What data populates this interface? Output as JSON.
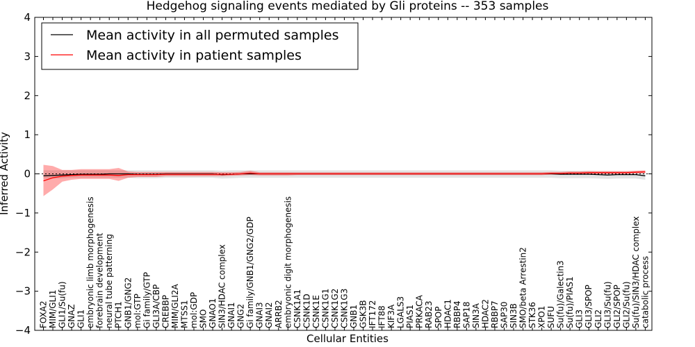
{
  "chart_data": {
    "type": "line",
    "title": "Hedgehog signaling events mediated by Gli proteins -- 353 samples",
    "xlabel": "Cellular Entities",
    "ylabel": "Inferred Activity",
    "ylim": [
      -4,
      4
    ],
    "yticks": [
      -4,
      -3,
      -2,
      -1,
      0,
      1,
      2,
      3,
      4
    ],
    "ytick_labels": [
      "−4",
      "−3",
      "−2",
      "−1",
      "0",
      "1",
      "2",
      "3",
      "4"
    ],
    "legend_position": "upper-left",
    "categories": [
      "FOXA2",
      "MIM/GLI1",
      "GLI1/Su(fu)",
      "GNAZ",
      "GLI1",
      "embryonic limb morphogenesis",
      "forebrain development",
      "neural tube patterning",
      "PTCH1",
      "GNB1/GNG2",
      "mol:GTP",
      "Gi family/GTP",
      "GLI3A/CBP",
      "CREBBP",
      "MIM/GLI2A",
      "MTSS1",
      "mol:GDP",
      "SMO",
      "GNAO1",
      "SIN3/HDAC complex",
      "GNAI1",
      "GNG2",
      "Gi family/GNB1/GNG2/GDP",
      "GNAI3",
      "GNAI2",
      "ARRB2",
      "embryonic digit morphogenesis",
      "CSNK1A1",
      "CSNK1D",
      "CSNK1E",
      "CSNK1G1",
      "CSNK1G2",
      "CSNK1G3",
      "GNB1",
      "GSK3B",
      "IFT172",
      "IFT88",
      "KIF3A",
      "LGALS3",
      "PIAS1",
      "PRKACA",
      "RAB23",
      "SPOP",
      "HDAC1",
      "RBBP4",
      "SAP18",
      "SIN3A",
      "HDAC2",
      "RBBP7",
      "SAP30",
      "SIN3B",
      "SMO/beta Arrestin2",
      "STK36",
      "XPO1",
      "SUFU",
      "Su(fu)/Galectin3",
      "Su(fu)/PIAS1",
      "GLI3",
      "GLI3/SPOP",
      "GLI2",
      "GLI3/Su(fu)",
      "GLI2/SPOP",
      "GLI2/Su(fu)",
      "Su(fu)/SIN3/HDAC complex",
      "catabolic process"
    ],
    "series": [
      {
        "name": "Mean activity in all permuted samples",
        "color": "#000000",
        "values": [
          -0.05,
          -0.04,
          -0.03,
          -0.02,
          -0.01,
          -0.01,
          -0.01,
          0.0,
          0.0,
          0.0,
          -0.01,
          -0.01,
          -0.01,
          0.0,
          0.0,
          0.0,
          0.0,
          0.0,
          0.0,
          -0.02,
          -0.01,
          0.0,
          0.0,
          0.0,
          0.0,
          0.0,
          0.0,
          0.0,
          0.0,
          0.0,
          0.0,
          0.0,
          0.0,
          0.0,
          0.0,
          0.0,
          0.0,
          0.0,
          0.0,
          0.0,
          0.0,
          0.0,
          0.0,
          0.0,
          0.0,
          0.0,
          0.0,
          0.0,
          0.0,
          0.0,
          0.0,
          0.0,
          0.0,
          0.0,
          0.0,
          -0.01,
          -0.01,
          -0.01,
          -0.01,
          -0.02,
          -0.03,
          -0.02,
          -0.02,
          -0.02,
          -0.05
        ],
        "band_lower": [
          -0.12,
          -0.12,
          -0.11,
          -0.1,
          -0.1,
          -0.1,
          -0.1,
          -0.1,
          -0.1,
          -0.1,
          -0.11,
          -0.11,
          -0.11,
          -0.1,
          -0.1,
          -0.1,
          -0.1,
          -0.1,
          -0.1,
          -0.12,
          -0.11,
          -0.1,
          -0.1,
          -0.1,
          -0.1,
          -0.1,
          -0.1,
          -0.1,
          -0.1,
          -0.1,
          -0.1,
          -0.1,
          -0.1,
          -0.1,
          -0.1,
          -0.1,
          -0.1,
          -0.1,
          -0.1,
          -0.1,
          -0.1,
          -0.1,
          -0.1,
          -0.1,
          -0.1,
          -0.1,
          -0.1,
          -0.1,
          -0.1,
          -0.1,
          -0.1,
          -0.1,
          -0.1,
          -0.1,
          -0.1,
          -0.11,
          -0.11,
          -0.11,
          -0.11,
          -0.12,
          -0.13,
          -0.12,
          -0.12,
          -0.12,
          -0.15
        ],
        "band_upper": [
          0.09,
          0.09,
          0.09,
          0.09,
          0.09,
          0.09,
          0.09,
          0.09,
          0.09,
          0.09,
          0.09,
          0.09,
          0.09,
          0.09,
          0.09,
          0.09,
          0.09,
          0.09,
          0.09,
          0.08,
          0.09,
          0.09,
          0.09,
          0.09,
          0.09,
          0.09,
          0.09,
          0.09,
          0.09,
          0.09,
          0.09,
          0.09,
          0.09,
          0.09,
          0.09,
          0.09,
          0.09,
          0.09,
          0.09,
          0.09,
          0.09,
          0.09,
          0.09,
          0.09,
          0.09,
          0.09,
          0.09,
          0.09,
          0.09,
          0.09,
          0.09,
          0.09,
          0.09,
          0.09,
          0.09,
          0.08,
          0.08,
          0.08,
          0.08,
          0.07,
          0.07,
          0.07,
          0.07,
          0.07,
          0.07
        ]
      },
      {
        "name": "Mean activity in patient samples",
        "color": "#ff0000",
        "values": [
          -0.18,
          -0.1,
          -0.06,
          -0.04,
          -0.03,
          -0.03,
          -0.03,
          -0.03,
          -0.04,
          -0.02,
          -0.02,
          -0.02,
          -0.02,
          -0.01,
          -0.01,
          -0.01,
          -0.01,
          -0.01,
          -0.01,
          -0.01,
          -0.01,
          0.0,
          0.02,
          0.0,
          0.0,
          0.0,
          0.0,
          0.0,
          0.0,
          0.0,
          0.0,
          0.0,
          0.0,
          0.0,
          0.0,
          0.0,
          0.0,
          0.0,
          0.0,
          0.0,
          0.0,
          0.0,
          0.0,
          0.0,
          0.0,
          0.0,
          0.0,
          0.0,
          0.0,
          0.0,
          0.0,
          0.0,
          0.0,
          0.0,
          0.01,
          0.01,
          0.02,
          0.02,
          0.03,
          0.03,
          0.03,
          0.03,
          0.03,
          0.04,
          0.05
        ],
        "band_lower": [
          -0.57,
          -0.4,
          -0.2,
          -0.15,
          -0.13,
          -0.13,
          -0.13,
          -0.13,
          -0.18,
          -0.1,
          -0.08,
          -0.08,
          -0.08,
          -0.06,
          -0.06,
          -0.06,
          -0.06,
          -0.06,
          -0.06,
          -0.06,
          -0.05,
          -0.04,
          -0.03,
          -0.04,
          -0.04,
          -0.04,
          -0.04,
          -0.03,
          -0.03,
          -0.03,
          -0.03,
          -0.03,
          -0.03,
          -0.03,
          -0.03,
          -0.03,
          -0.03,
          -0.03,
          -0.03,
          -0.03,
          -0.03,
          -0.03,
          -0.03,
          -0.03,
          -0.03,
          -0.03,
          -0.03,
          -0.03,
          -0.03,
          -0.03,
          -0.03,
          -0.03,
          -0.03,
          -0.03,
          -0.02,
          -0.02,
          -0.01,
          -0.01,
          0.0,
          0.0,
          0.0,
          0.0,
          0.0,
          0.01,
          0.02
        ],
        "band_upper": [
          0.23,
          0.2,
          0.1,
          0.1,
          0.12,
          0.12,
          0.12,
          0.12,
          0.15,
          0.06,
          0.05,
          0.05,
          0.05,
          0.05,
          0.05,
          0.05,
          0.05,
          0.05,
          0.05,
          0.04,
          0.04,
          0.05,
          0.08,
          0.04,
          0.04,
          0.04,
          0.04,
          0.04,
          0.04,
          0.04,
          0.04,
          0.04,
          0.04,
          0.04,
          0.04,
          0.04,
          0.04,
          0.04,
          0.04,
          0.04,
          0.04,
          0.04,
          0.04,
          0.04,
          0.04,
          0.04,
          0.04,
          0.04,
          0.04,
          0.04,
          0.04,
          0.04,
          0.04,
          0.04,
          0.05,
          0.05,
          0.06,
          0.06,
          0.07,
          0.07,
          0.07,
          0.07,
          0.07,
          0.08,
          0.09
        ]
      }
    ],
    "band_colors": [
      "#cccccc",
      "#ff0000"
    ]
  }
}
